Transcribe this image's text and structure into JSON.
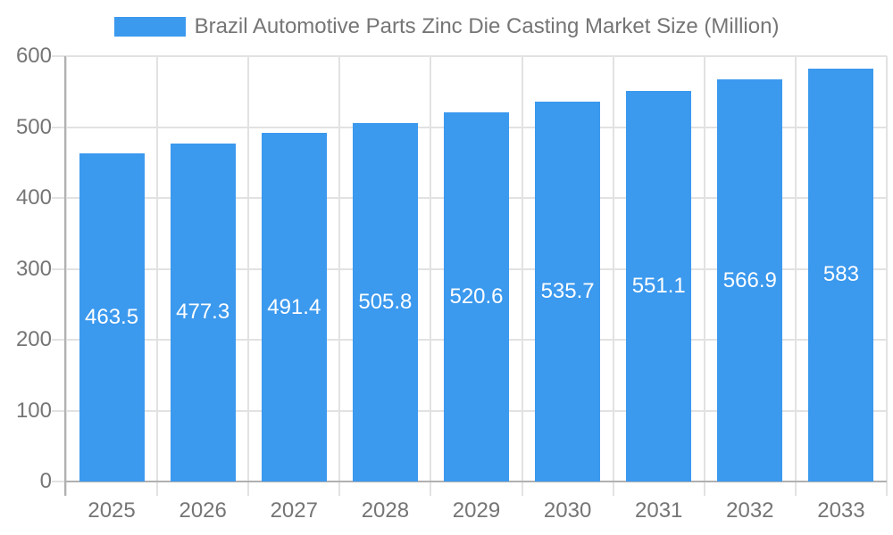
{
  "legend": {
    "label": "Brazil Automotive Parts Zinc Die Casting Market Size (Million)"
  },
  "chart_data": {
    "type": "bar",
    "title": "Brazil Automotive Parts Zinc Die Casting Market Size (Million)",
    "series_name": "Brazil Automotive Parts Zinc Die Casting Market Size (Million)",
    "categories": [
      "2025",
      "2026",
      "2027",
      "2028",
      "2029",
      "2030",
      "2031",
      "2032",
      "2033"
    ],
    "values": [
      463.5,
      477.3,
      491.4,
      505.8,
      520.6,
      535.7,
      551.1,
      566.9,
      583
    ],
    "bar_labels": [
      "463.5",
      "477.3",
      "491.4",
      "505.8",
      "520.6",
      "535.7",
      "551.1",
      "566.9",
      "583"
    ],
    "xlabel": "",
    "ylabel": "",
    "ylim": [
      0,
      600
    ],
    "yticks": [
      0,
      100,
      200,
      300,
      400,
      500,
      600
    ],
    "grid": true,
    "legend_position": "top",
    "bar_labels_visible": true,
    "bar_label_position": "center"
  },
  "colors": {
    "bar": "#3b99ee",
    "grid": "#e2e2e2",
    "axis": "#b0b0b0",
    "tick": "#e2e2e2",
    "tick_label": "#757575",
    "bar_label": "#ffffff",
    "background": "#ffffff"
  }
}
